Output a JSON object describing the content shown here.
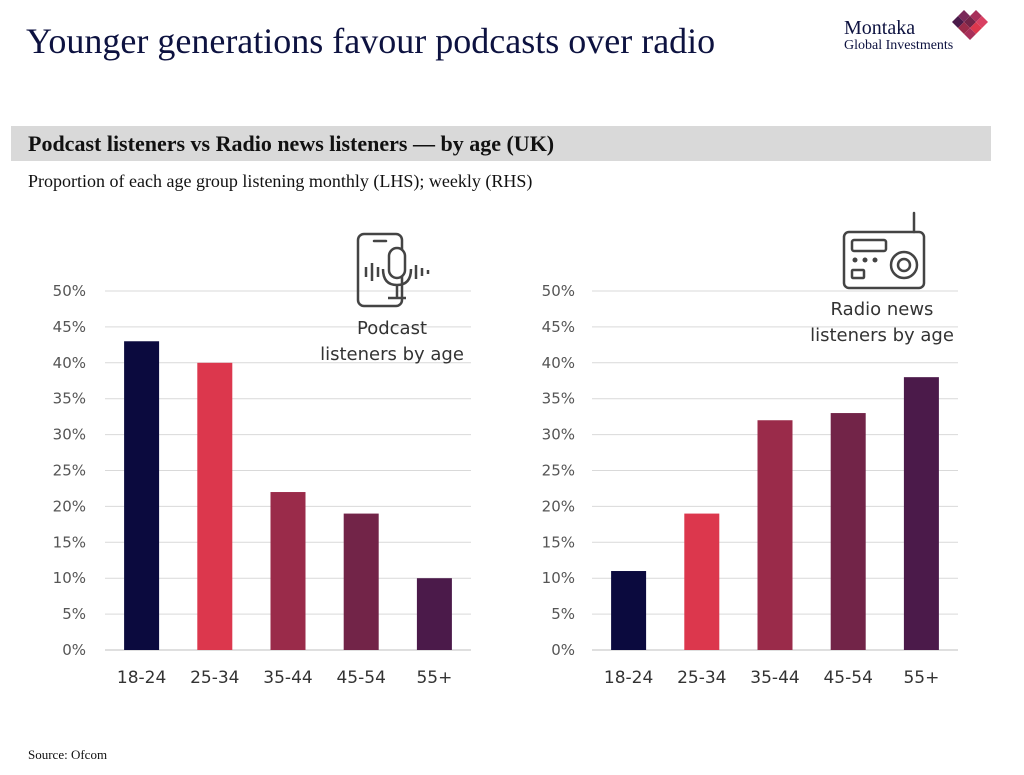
{
  "header": {
    "title": "Younger generations favour podcasts over radio",
    "logo_name": "Montaka",
    "logo_sub": "Global Investments"
  },
  "banner": {
    "text": "Podcast listeners vs Radio news listeners — by age (UK)"
  },
  "subtitle": "Proportion of each age group listening monthly (LHS); weekly (RHS)",
  "source": "Source: Ofcom",
  "icons": {
    "left": "smartphone-microphone-icon",
    "right": "radio-icon"
  },
  "colors": {
    "bars": [
      "#0b0a3e",
      "#dc374d",
      "#9a2b4a",
      "#722448",
      "#4b1a4a"
    ],
    "grid": "#d9d9d9",
    "logo": [
      "#7a2a5a",
      "#a8305a",
      "#d94062",
      "#4b1a4a"
    ]
  },
  "chart_data": [
    {
      "type": "bar",
      "title": "Podcast listeners by age",
      "categories": [
        "18-24",
        "25-34",
        "35-44",
        "45-54",
        "55+"
      ],
      "values": [
        43,
        40,
        22,
        19,
        10
      ],
      "ylim": [
        0,
        50
      ],
      "yticks": [
        "0%",
        "5%",
        "10%",
        "15%",
        "20%",
        "25%",
        "30%",
        "35%",
        "40%",
        "45%",
        "50%"
      ],
      "grid": true
    },
    {
      "type": "bar",
      "title": "Radio news listeners by age",
      "categories": [
        "18-24",
        "25-34",
        "35-44",
        "45-54",
        "55+"
      ],
      "values": [
        11,
        19,
        32,
        33,
        38
      ],
      "ylim": [
        0,
        50
      ],
      "yticks": [
        "0%",
        "5%",
        "10%",
        "15%",
        "20%",
        "25%",
        "30%",
        "35%",
        "40%",
        "45%",
        "50%"
      ],
      "grid": true
    }
  ]
}
